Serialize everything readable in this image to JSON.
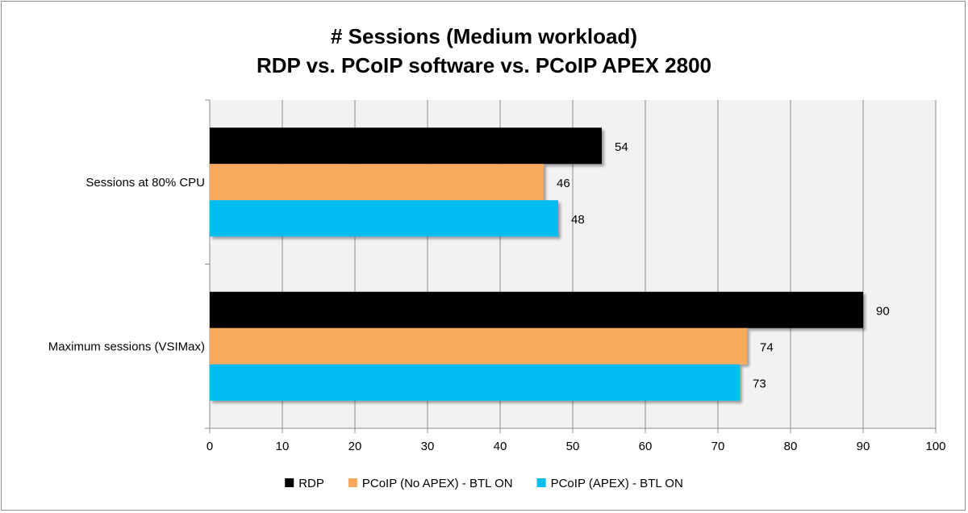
{
  "chart_data": {
    "type": "bar",
    "orientation": "horizontal",
    "title": "# Sessions (Medium workload)",
    "subtitle": "RDP vs. PCoIP software vs. PCoIP APEX 2800",
    "categories": [
      "Sessions at 80% CPU",
      "Maximum sessions (VSIMax)"
    ],
    "series": [
      {
        "name": "RDP",
        "color": "#000000",
        "values": [
          54,
          90
        ]
      },
      {
        "name": "PCoIP (No APEX) - BTL ON",
        "color": "#f7a95c",
        "values": [
          46,
          74
        ]
      },
      {
        "name": "PCoIP (APEX) - BTL ON",
        "color": "#00bcef",
        "values": [
          48,
          73
        ]
      }
    ],
    "xlim": [
      0,
      100
    ],
    "xticks": [
      0,
      10,
      20,
      30,
      40,
      50,
      60,
      70,
      80,
      90,
      100
    ],
    "grid": true,
    "legend_position": "bottom",
    "data_labels": true,
    "plot_background": "#f2f2f2"
  }
}
